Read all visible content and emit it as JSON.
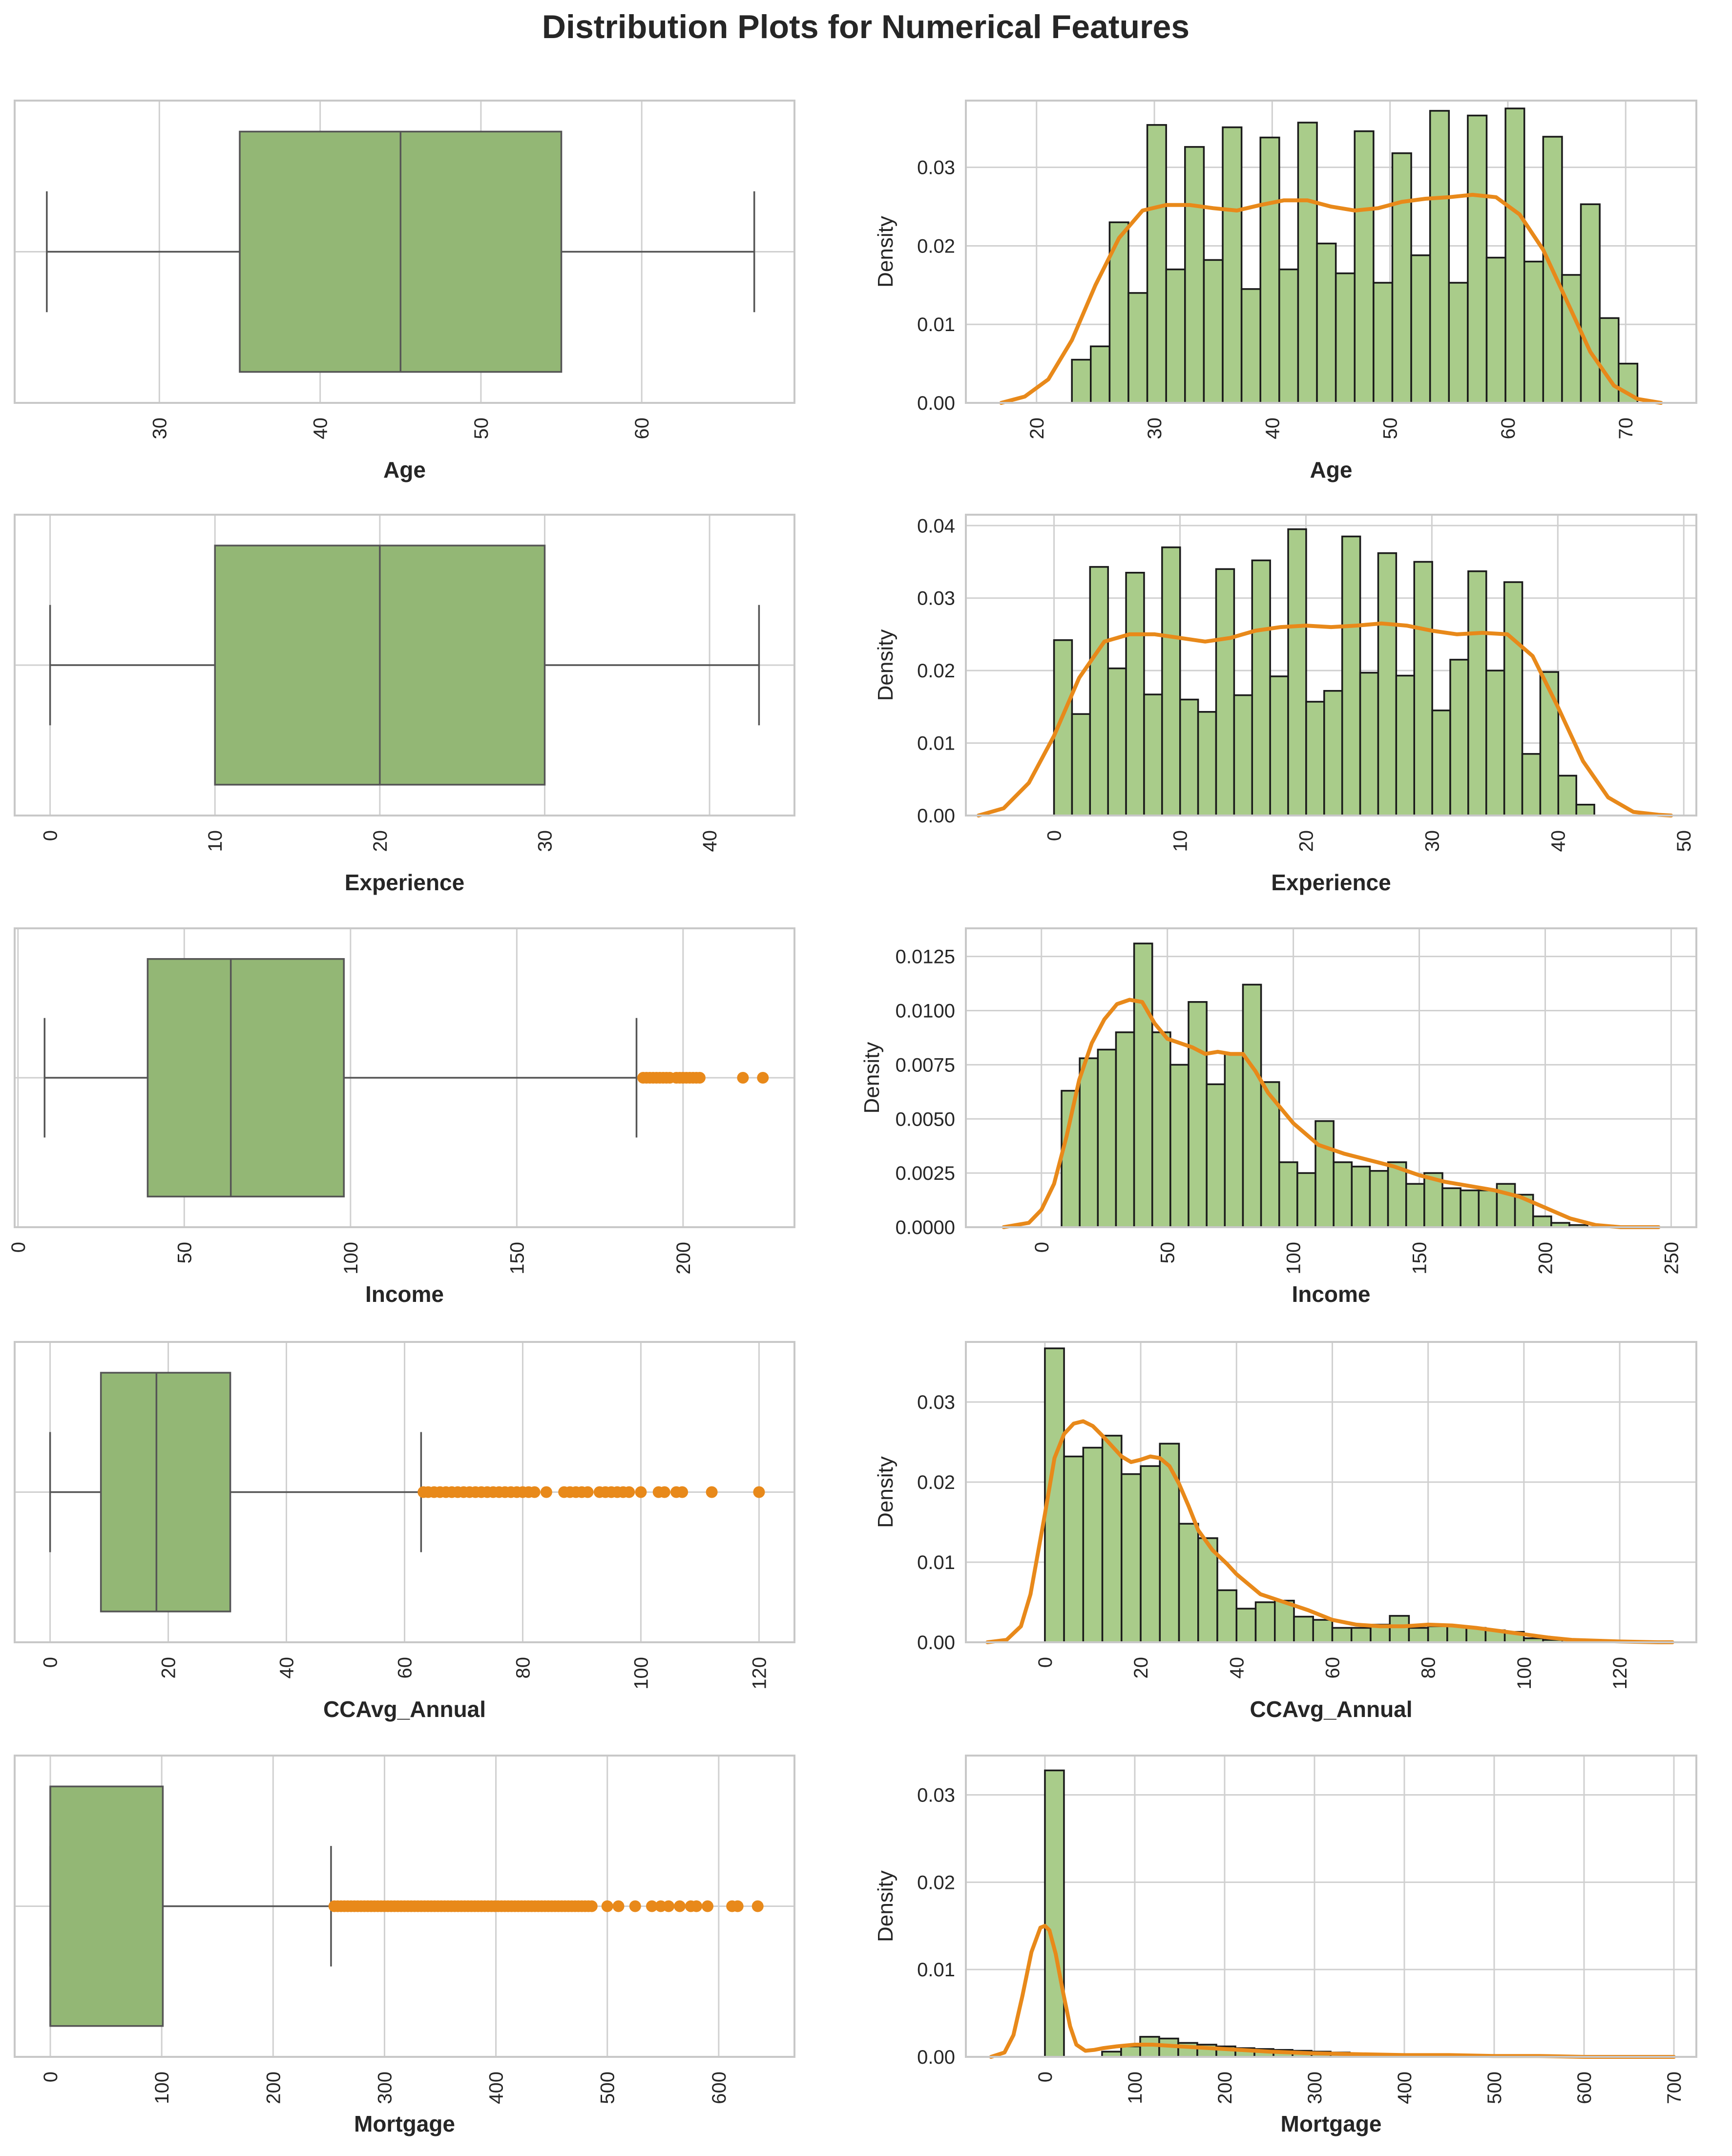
{
  "figure": {
    "title": "Distribution Plots for Numerical Features",
    "colors": {
      "box_fill": "#93b775",
      "hist_fill": "#a9cc8a",
      "kde_line": "#e8891a",
      "outlier": "#e8891a",
      "grid": "#d0d0d0",
      "frame": "#c8c8c8",
      "median": "#555555"
    }
  },
  "chart_data": [
    {
      "type": "box",
      "feature": "Age",
      "xlabel": "Age",
      "xlim": [
        21,
        69.5
      ],
      "xticks": [
        30,
        40,
        50,
        60
      ],
      "whisker_low": 23,
      "q1": 35,
      "median": 45,
      "q3": 55,
      "whisker_high": 67,
      "outliers": []
    },
    {
      "type": "histogram",
      "feature": "Age",
      "xlabel": "Age",
      "ylabel": "Density",
      "xlim": [
        14,
        76
      ],
      "ylim": [
        0,
        0.0385
      ],
      "xticks": [
        20,
        30,
        40,
        50,
        60,
        70
      ],
      "yticks": [
        0.0,
        0.01,
        0.02,
        0.03
      ],
      "ytick_labels": [
        "0.00",
        "0.01",
        "0.02",
        "0.03"
      ],
      "bin_start": 23,
      "bin_width": 1.6,
      "values": [
        0.0055,
        0.0072,
        0.023,
        0.014,
        0.0354,
        0.017,
        0.0326,
        0.0182,
        0.0351,
        0.0145,
        0.0338,
        0.017,
        0.0357,
        0.0203,
        0.0165,
        0.0346,
        0.0153,
        0.0318,
        0.0188,
        0.0372,
        0.0153,
        0.0366,
        0.0185,
        0.0375,
        0.018,
        0.0339,
        0.0163,
        0.0253,
        0.0108,
        0.005
      ],
      "kde": {
        "x": [
          17,
          19,
          21,
          23,
          25,
          27,
          29,
          31,
          33,
          35,
          37,
          39,
          41,
          43,
          45,
          47,
          49,
          51,
          53,
          55,
          57,
          59,
          61,
          63,
          65,
          67,
          69,
          71,
          73
        ],
        "y": [
          0.0,
          0.0008,
          0.003,
          0.008,
          0.015,
          0.021,
          0.0245,
          0.0252,
          0.0252,
          0.0248,
          0.0245,
          0.0252,
          0.0258,
          0.0258,
          0.025,
          0.0245,
          0.0248,
          0.0256,
          0.026,
          0.0262,
          0.0265,
          0.0262,
          0.024,
          0.0195,
          0.013,
          0.0065,
          0.0022,
          0.0005,
          0.0
        ]
      }
    },
    {
      "type": "box",
      "feature": "Experience",
      "xlabel": "Experience",
      "xlim": [
        -2.15,
        45.15
      ],
      "xticks": [
        0,
        10,
        20,
        30,
        40
      ],
      "whisker_low": 0,
      "q1": 10,
      "median": 20,
      "q3": 30,
      "whisker_high": 43,
      "outliers": []
    },
    {
      "type": "histogram",
      "feature": "Experience",
      "xlabel": "Experience",
      "ylabel": "Density",
      "xlim": [
        -7,
        51
      ],
      "ylim": [
        0,
        0.0415
      ],
      "xticks": [
        0,
        10,
        20,
        30,
        40,
        50
      ],
      "yticks": [
        0.0,
        0.01,
        0.02,
        0.03,
        0.04
      ],
      "ytick_labels": [
        "0.00",
        "0.01",
        "0.02",
        "0.03",
        "0.04"
      ],
      "bin_start": 0,
      "bin_width": 1.43,
      "values": [
        0.0242,
        0.014,
        0.0343,
        0.0203,
        0.0335,
        0.0167,
        0.037,
        0.016,
        0.0143,
        0.034,
        0.0166,
        0.0352,
        0.0192,
        0.0395,
        0.0157,
        0.0172,
        0.0385,
        0.0197,
        0.0362,
        0.0193,
        0.035,
        0.0145,
        0.0215,
        0.0337,
        0.02,
        0.0322,
        0.0085,
        0.0198,
        0.0055,
        0.0015
      ],
      "kde": {
        "x": [
          -6,
          -4,
          -2,
          0,
          2,
          4,
          6,
          8,
          10,
          12,
          14,
          16,
          18,
          20,
          22,
          24,
          26,
          28,
          30,
          32,
          34,
          36,
          38,
          40,
          42,
          44,
          46,
          48,
          49
        ],
        "y": [
          0.0,
          0.001,
          0.0045,
          0.011,
          0.019,
          0.024,
          0.025,
          0.025,
          0.0245,
          0.024,
          0.0245,
          0.0255,
          0.026,
          0.0262,
          0.026,
          0.0262,
          0.0265,
          0.0262,
          0.0255,
          0.025,
          0.0252,
          0.025,
          0.022,
          0.015,
          0.0075,
          0.0025,
          0.0005,
          0.0001,
          0.0
        ]
      }
    },
    {
      "type": "box",
      "feature": "Income",
      "xlabel": "Income",
      "xlim": [
        -1,
        233.5
      ],
      "xticks": [
        0,
        50,
        100,
        150,
        200
      ],
      "whisker_low": 8,
      "q1": 39,
      "median": 64,
      "q3": 98,
      "whisker_high": 186,
      "outliers": [
        188,
        189,
        190,
        191,
        192,
        193,
        194,
        195,
        196,
        198,
        199,
        200,
        201,
        202,
        203,
        204,
        205,
        218,
        224
      ]
    },
    {
      "type": "histogram",
      "feature": "Income",
      "xlabel": "Income",
      "ylabel": "Density",
      "xlim": [
        -30,
        260
      ],
      "ylim": [
        0,
        0.0138
      ],
      "xticks": [
        0,
        50,
        100,
        150,
        200,
        250
      ],
      "yticks": [
        0.0,
        0.0025,
        0.005,
        0.0075,
        0.01,
        0.0125
      ],
      "ytick_labels": [
        "0.0000",
        "0.0025",
        "0.0050",
        "0.0075",
        "0.0100",
        "0.0125"
      ],
      "bin_start": 8,
      "bin_width": 7.2,
      "values": [
        0.0063,
        0.0078,
        0.0082,
        0.009,
        0.0131,
        0.009,
        0.0075,
        0.0104,
        0.0066,
        0.008,
        0.0112,
        0.0067,
        0.003,
        0.0025,
        0.0049,
        0.003,
        0.0028,
        0.0026,
        0.003,
        0.002,
        0.0025,
        0.0018,
        0.0017,
        0.0017,
        0.002,
        0.0015,
        0.0005,
        0.0002,
        0.0001
      ],
      "kde": {
        "x": [
          -15,
          -5,
          0,
          5,
          10,
          15,
          20,
          25,
          30,
          35,
          40,
          45,
          50,
          55,
          60,
          65,
          70,
          75,
          80,
          85,
          90,
          95,
          100,
          110,
          120,
          130,
          140,
          150,
          160,
          170,
          180,
          190,
          200,
          210,
          220,
          230,
          245
        ],
        "y": [
          0.0,
          0.0002,
          0.0008,
          0.002,
          0.0042,
          0.0068,
          0.0085,
          0.0096,
          0.0103,
          0.0105,
          0.0104,
          0.0094,
          0.0087,
          0.0085,
          0.0083,
          0.008,
          0.0081,
          0.008,
          0.008,
          0.0072,
          0.0062,
          0.0055,
          0.0048,
          0.0038,
          0.0034,
          0.0031,
          0.0028,
          0.0024,
          0.0021,
          0.0019,
          0.0017,
          0.0014,
          0.0009,
          0.0004,
          0.0001,
          0.0,
          0.0
        ]
      }
    },
    {
      "type": "box",
      "feature": "CCAvg_Annual",
      "xlabel": "CCAvg_Annual",
      "xlim": [
        -6,
        126
      ],
      "xticks": [
        0,
        20,
        40,
        60,
        80,
        100,
        120
      ],
      "whisker_low": 0,
      "q1": 8.6,
      "median": 18,
      "q3": 30.5,
      "whisker_high": 62.8,
      "outliers": [
        63.2,
        64,
        65,
        66,
        67,
        68,
        69,
        70,
        71,
        72,
        73,
        74,
        75,
        76,
        77,
        78,
        79,
        80,
        81,
        82,
        84,
        87,
        88,
        89,
        90,
        91,
        93,
        94,
        95,
        96,
        97,
        98,
        100,
        103,
        104,
        106,
        107,
        112,
        120
      ]
    },
    {
      "type": "histogram",
      "feature": "CCAvg_Annual",
      "xlabel": "CCAvg_Annual",
      "ylabel": "Density",
      "xlim": [
        -16.5,
        136
      ],
      "ylim": [
        0,
        0.0375
      ],
      "xticks": [
        0,
        20,
        40,
        60,
        80,
        100,
        120
      ],
      "yticks": [
        0.0,
        0.01,
        0.02,
        0.03
      ],
      "ytick_labels": [
        "0.00",
        "0.01",
        "0.02",
        "0.03"
      ],
      "bin_start": 0,
      "bin_width": 4.0,
      "values": [
        0.0367,
        0.0232,
        0.0243,
        0.0258,
        0.021,
        0.022,
        0.0248,
        0.0148,
        0.013,
        0.0065,
        0.0042,
        0.005,
        0.0052,
        0.0032,
        0.0028,
        0.0018,
        0.0018,
        0.0022,
        0.0033,
        0.0018,
        0.002,
        0.002,
        0.0018,
        0.0015,
        0.0013,
        0.0005,
        0.0003,
        0.0003,
        0.0003,
        0.0002
      ],
      "kde": {
        "x": [
          -12,
          -8,
          -5,
          -3,
          0,
          2,
          4,
          6,
          8,
          10,
          12,
          14,
          16,
          18,
          20,
          22,
          24,
          26,
          28,
          30,
          32,
          35,
          38,
          40,
          45,
          50,
          55,
          60,
          65,
          70,
          75,
          80,
          85,
          90,
          95,
          100,
          105,
          110,
          115,
          120,
          128,
          131
        ],
        "y": [
          0.0,
          0.0003,
          0.002,
          0.006,
          0.016,
          0.023,
          0.026,
          0.0273,
          0.0276,
          0.027,
          0.0258,
          0.0245,
          0.0232,
          0.0225,
          0.0228,
          0.0232,
          0.023,
          0.022,
          0.0198,
          0.017,
          0.014,
          0.0115,
          0.0098,
          0.0085,
          0.006,
          0.005,
          0.004,
          0.0028,
          0.0022,
          0.002,
          0.002,
          0.0022,
          0.0021,
          0.0018,
          0.0014,
          0.001,
          0.0006,
          0.0003,
          0.0002,
          0.0001,
          0.0,
          0.0
        ]
      }
    },
    {
      "type": "box",
      "feature": "Mortgage",
      "xlabel": "Mortgage",
      "xlim": [
        -32,
        668
      ],
      "xticks": [
        0,
        100,
        200,
        300,
        400,
        500,
        600
      ],
      "whisker_low": 0,
      "q1": 0,
      "median": 0,
      "q3": 101,
      "whisker_high": 252,
      "outliers": [
        255,
        258,
        261,
        264,
        267,
        270,
        273,
        276,
        279,
        282,
        285,
        288,
        291,
        294,
        297,
        300,
        303,
        306,
        309,
        312,
        315,
        318,
        321,
        324,
        327,
        330,
        333,
        336,
        339,
        342,
        345,
        348,
        351,
        354,
        357,
        360,
        363,
        366,
        369,
        372,
        375,
        378,
        381,
        384,
        387,
        390,
        393,
        396,
        399,
        402,
        405,
        408,
        411,
        414,
        417,
        420,
        423,
        426,
        429,
        432,
        435,
        438,
        441,
        444,
        447,
        450,
        453,
        456,
        459,
        462,
        465,
        468,
        471,
        474,
        477,
        480,
        483,
        486,
        500,
        510,
        525,
        540,
        548,
        555,
        565,
        575,
        580,
        590,
        612,
        617,
        635
      ]
    },
    {
      "type": "histogram",
      "feature": "Mortgage",
      "xlabel": "Mortgage",
      "ylabel": "Density",
      "xlim": [
        -88,
        725
      ],
      "ylim": [
        0,
        0.0345
      ],
      "xticks": [
        0,
        100,
        200,
        300,
        400,
        500,
        600,
        700
      ],
      "yticks": [
        0.0,
        0.01,
        0.02,
        0.03
      ],
      "ytick_labels": [
        "0.00",
        "0.01",
        "0.02",
        "0.03"
      ],
      "bin_start": 0,
      "bin_width": 21.2,
      "values": [
        0.0328,
        0.0,
        0.0,
        0.0006,
        0.0012,
        0.0023,
        0.0021,
        0.0016,
        0.0014,
        0.0012,
        0.001,
        0.0009,
        0.0008,
        0.0007,
        0.0006,
        0.0005,
        0.0004,
        0.0003,
        0.0003,
        0.0002,
        0.0002,
        0.0001,
        0.0001,
        0.0001,
        0.0001,
        0.0001,
        0.0,
        0.0,
        0.0,
        0.0
      ],
      "kde": {
        "x": [
          -60,
          -45,
          -35,
          -25,
          -15,
          -5,
          0,
          5,
          12,
          20,
          28,
          35,
          45,
          55,
          65,
          80,
          100,
          120,
          150,
          200,
          250,
          300,
          350,
          400,
          450,
          500,
          550,
          600,
          650,
          700
        ],
        "y": [
          0.0,
          0.0005,
          0.0025,
          0.007,
          0.012,
          0.0148,
          0.015,
          0.0145,
          0.0118,
          0.0075,
          0.0035,
          0.0014,
          0.0007,
          0.0008,
          0.001,
          0.0012,
          0.0014,
          0.0014,
          0.0012,
          0.0009,
          0.0006,
          0.0004,
          0.0003,
          0.0002,
          0.0002,
          0.0001,
          0.0001,
          0.0,
          0.0,
          0.0
        ]
      }
    }
  ]
}
